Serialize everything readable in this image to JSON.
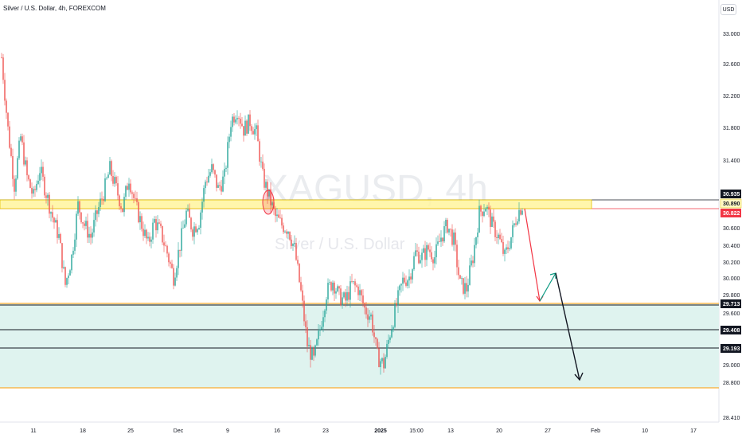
{
  "header": {
    "title": "Silver / U.S. Dollar, 4h, FOREXCOM",
    "currency": "USD"
  },
  "watermark": {
    "symbol": "XAGUSD, 4h",
    "name": "Silver / U.S. Dollar"
  },
  "price_axis": {
    "labels": [
      "33.000",
      "32.600",
      "32.200",
      "31.800",
      "31.400",
      "30.600",
      "30.400",
      "30.200",
      "30.000",
      "29.800",
      "29.600",
      "29.000",
      "28.800",
      "28.410"
    ]
  },
  "price_badges": [
    {
      "label": "30.935",
      "bg": "#131722",
      "fg": "#ffffff"
    },
    {
      "label": "30.890",
      "bg": "#fff9c4",
      "fg": "#131722"
    },
    {
      "label": "30.822",
      "bg": "#f23645",
      "fg": "#ffffff"
    },
    {
      "label": "29.713",
      "bg": "#131722",
      "fg": "#ffffff"
    },
    {
      "label": "29.408",
      "bg": "#131722",
      "fg": "#ffffff"
    },
    {
      "label": "29.193",
      "bg": "#131722",
      "fg": "#ffffff"
    }
  ],
  "time_axis": {
    "labels": [
      "11",
      "18",
      "25",
      "Dec",
      "9",
      "16",
      "23",
      "2025",
      "15:00",
      "13",
      "20",
      "27",
      "Feb",
      "10",
      "17"
    ]
  },
  "colors": {
    "up": "#26a69a",
    "down": "#ef5350",
    "resistance_zone": "#fff59d",
    "support_zone": "#dff3ef",
    "support_border": "#ff9800",
    "projection_down": "#f23645",
    "projection_up": "#089981",
    "projection_final": "#131722"
  },
  "chart_data": {
    "type": "candlestick",
    "symbol": "Silver / U.S. Dollar",
    "timeframe": "4h",
    "x_tick_labels": [
      "11",
      "18",
      "25",
      "Dec",
      "9",
      "16",
      "23",
      "2025",
      "15:00",
      "13",
      "20",
      "27",
      "Feb",
      "10",
      "17"
    ],
    "y_range": [
      28.41,
      33.1
    ],
    "close_path": [
      [
        0,
        32.7
      ],
      [
        4,
        31.8
      ],
      [
        8,
        31.1
      ],
      [
        12,
        31.7
      ],
      [
        16,
        31.2
      ],
      [
        20,
        30.95
      ],
      [
        24,
        31.3
      ],
      [
        28,
        31.0
      ],
      [
        32,
        30.7
      ],
      [
        36,
        30.45
      ],
      [
        40,
        29.85
      ],
      [
        44,
        30.2
      ],
      [
        48,
        30.85
      ],
      [
        52,
        30.6
      ],
      [
        56,
        30.45
      ],
      [
        60,
        30.75
      ],
      [
        64,
        31.0
      ],
      [
        68,
        31.3
      ],
      [
        72,
        31.05
      ],
      [
        76,
        30.8
      ],
      [
        80,
        31.2
      ],
      [
        84,
        30.85
      ],
      [
        88,
        30.6
      ],
      [
        92,
        30.35
      ],
      [
        96,
        30.65
      ],
      [
        100,
        30.5
      ],
      [
        104,
        30.25
      ],
      [
        108,
        29.95
      ],
      [
        112,
        30.35
      ],
      [
        116,
        30.75
      ],
      [
        120,
        30.55
      ],
      [
        124,
        30.65
      ],
      [
        128,
        31.15
      ],
      [
        132,
        31.3
      ],
      [
        136,
        31.05
      ],
      [
        140,
        31.2
      ],
      [
        144,
        31.9
      ],
      [
        148,
        32.05
      ],
      [
        152,
        31.8
      ],
      [
        156,
        31.9
      ],
      [
        160,
        31.75
      ],
      [
        164,
        31.2
      ],
      [
        168,
        30.95
      ],
      [
        172,
        30.7
      ],
      [
        176,
        30.6
      ],
      [
        180,
        30.55
      ],
      [
        184,
        30.3
      ],
      [
        188,
        29.75
      ],
      [
        192,
        29.1
      ],
      [
        196,
        28.9
      ],
      [
        200,
        29.3
      ],
      [
        204,
        29.75
      ],
      [
        208,
        29.9
      ],
      [
        212,
        29.7
      ],
      [
        216,
        29.65
      ],
      [
        220,
        29.85
      ],
      [
        224,
        29.8
      ],
      [
        228,
        29.55
      ],
      [
        232,
        29.45
      ],
      [
        236,
        28.95
      ],
      [
        240,
        28.85
      ],
      [
        244,
        29.25
      ],
      [
        248,
        29.6
      ],
      [
        252,
        29.9
      ],
      [
        256,
        29.95
      ],
      [
        260,
        30.25
      ],
      [
        264,
        30.2
      ],
      [
        268,
        30.3
      ],
      [
        272,
        30.2
      ],
      [
        276,
        30.45
      ],
      [
        280,
        30.6
      ],
      [
        284,
        30.4
      ],
      [
        288,
        29.85
      ],
      [
        292,
        29.8
      ],
      [
        296,
        30.2
      ],
      [
        300,
        30.75
      ],
      [
        304,
        30.85
      ],
      [
        308,
        30.6
      ],
      [
        312,
        30.45
      ],
      [
        316,
        30.2
      ],
      [
        320,
        30.45
      ],
      [
        324,
        30.75
      ],
      [
        328,
        30.88
      ]
    ],
    "levels": [
      {
        "price": 30.935,
        "kind": "resistance-top"
      },
      {
        "price": 30.822,
        "kind": "resistance-bottom"
      },
      {
        "price": 29.713,
        "kind": "support-top"
      },
      {
        "price": 29.408,
        "kind": "support-mid"
      },
      {
        "price": 29.193,
        "kind": "support-mid"
      },
      {
        "price": 28.77,
        "kind": "support-bottom"
      }
    ],
    "projection": [
      [
        29.77
      ],
      [
        30.08
      ],
      [
        28.84
      ]
    ]
  }
}
